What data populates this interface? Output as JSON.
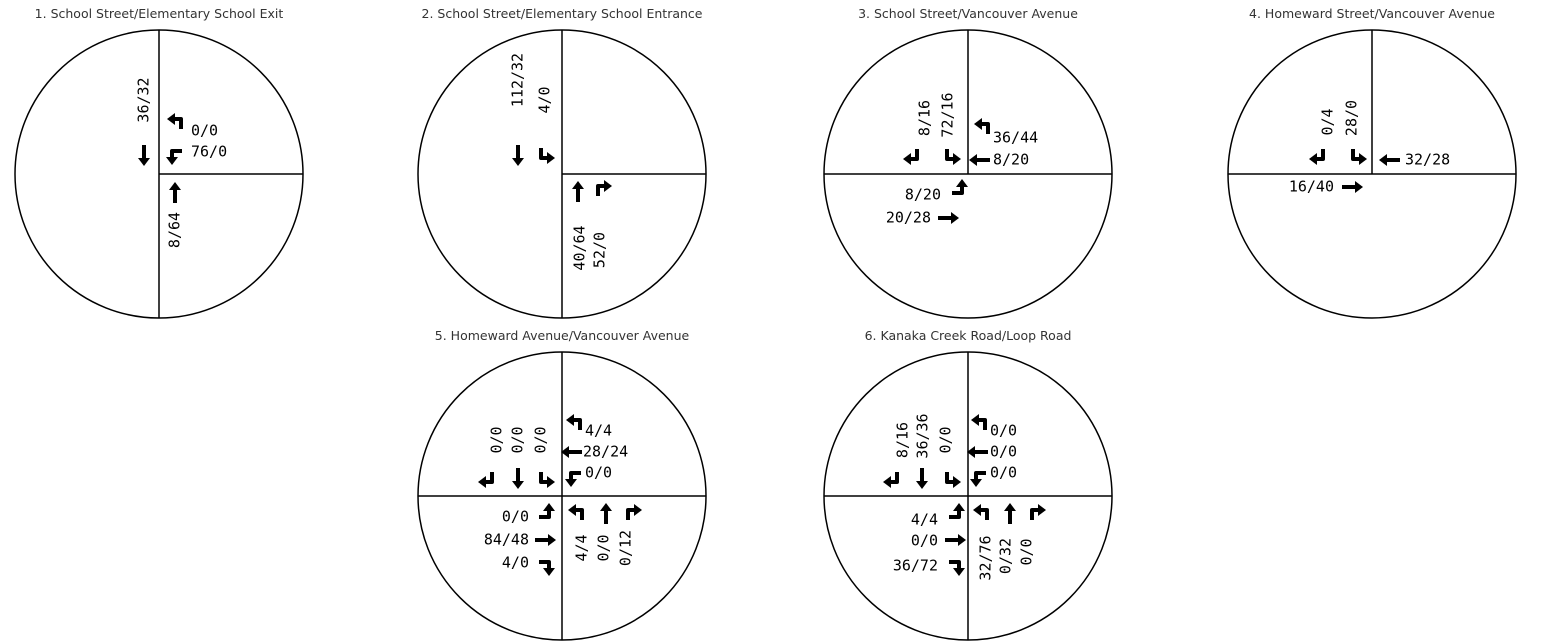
{
  "intersections": [
    {
      "title": "1. School Street/Elementary School Exit",
      "volumes": [
        "36/32",
        "0/0",
        "76/0",
        "8/64"
      ]
    },
    {
      "title": "2. School Street/Elementary School Entrance",
      "volumes": [
        "112/32",
        "4/0",
        "40/64",
        "52/0"
      ]
    },
    {
      "title": "3. School Street/Vancouver Avenue",
      "volumes": [
        "8/16",
        "72/16",
        "36/44",
        "8/20",
        "8/20",
        "20/28"
      ]
    },
    {
      "title": "4. Homeward Street/Vancouver Avenue",
      "volumes": [
        "0/4",
        "28/0",
        "32/28",
        "16/40"
      ]
    },
    {
      "title": "5. Homeward Avenue/Vancouver Avenue",
      "volumes": [
        "0/0",
        "0/0",
        "0/0",
        "4/4",
        "28/24",
        "0/0",
        "0/0",
        "84/48",
        "4/0",
        "4/4",
        "0/0",
        "0/12"
      ]
    },
    {
      "title": "6. Kanaka Creek Road/Loop Road",
      "volumes": [
        "8/16",
        "36/36",
        "0/0",
        "0/0",
        "0/0",
        "0/0",
        "4/4",
        "0/0",
        "36/72",
        "32/76",
        "0/32",
        "0/0"
      ]
    }
  ]
}
